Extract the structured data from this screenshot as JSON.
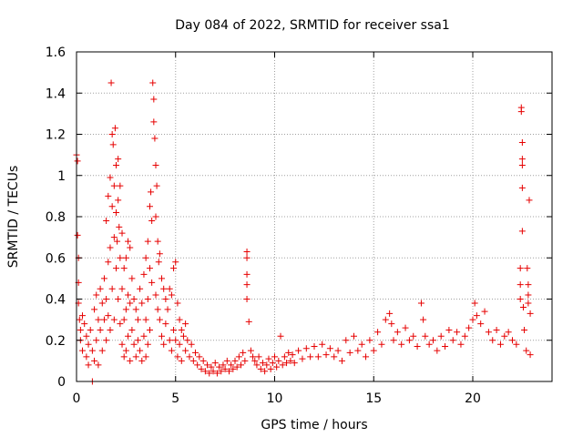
{
  "chart_data": {
    "type": "scatter",
    "title": "Day 084 of 2022, SRMTID for receiver ssa1",
    "xlabel": "GPS time / hours",
    "ylabel": "SRMTID / TECUs",
    "xlim": [
      0,
      24
    ],
    "ylim": [
      0,
      1.6
    ],
    "x_ticks": [
      0,
      5,
      10,
      15,
      20
    ],
    "x_tick_labels": [
      "0",
      "5",
      "10",
      "15",
      "20"
    ],
    "y_ticks": [
      0,
      0.2,
      0.4,
      0.6,
      0.8,
      1,
      1.2,
      1.4,
      1.6
    ],
    "y_tick_labels": [
      "0",
      "0.2",
      "0.4",
      "0.6",
      "0.8",
      "1",
      "1.2",
      "1.4",
      "1.6"
    ],
    "grid": true,
    "marker": "plus",
    "series": [
      {
        "name": "SRMTID",
        "color": "#e60000",
        "points": [
          [
            0.0,
            1.1
          ],
          [
            0.05,
            1.07
          ],
          [
            0.05,
            0.71
          ],
          [
            0.1,
            0.6
          ],
          [
            0.1,
            0.48
          ],
          [
            0.1,
            0.38
          ],
          [
            0.15,
            0.3
          ],
          [
            0.2,
            0.25
          ],
          [
            0.2,
            0.2
          ],
          [
            0.3,
            0.32
          ],
          [
            0.3,
            0.15
          ],
          [
            0.4,
            0.28
          ],
          [
            0.5,
            0.22
          ],
          [
            0.5,
            0.12
          ],
          [
            0.6,
            0.18
          ],
          [
            0.6,
            0.08
          ],
          [
            0.7,
            0.25
          ],
          [
            0.8,
            0.15
          ],
          [
            0.8,
            0.0
          ],
          [
            0.9,
            0.35
          ],
          [
            0.9,
            0.1
          ],
          [
            1.0,
            0.42
          ],
          [
            1.0,
            0.2
          ],
          [
            1.1,
            0.3
          ],
          [
            1.1,
            0.08
          ],
          [
            1.2,
            0.45
          ],
          [
            1.2,
            0.25
          ],
          [
            1.3,
            0.38
          ],
          [
            1.3,
            0.15
          ],
          [
            1.4,
            0.5
          ],
          [
            1.4,
            0.3
          ],
          [
            1.5,
            0.78
          ],
          [
            1.5,
            0.4
          ],
          [
            1.5,
            0.2
          ],
          [
            1.6,
            0.9
          ],
          [
            1.6,
            0.58
          ],
          [
            1.6,
            0.32
          ],
          [
            1.7,
            0.99
          ],
          [
            1.7,
            0.65
          ],
          [
            1.7,
            0.25
          ],
          [
            1.75,
            1.45
          ],
          [
            1.8,
            1.2
          ],
          [
            1.8,
            0.85
          ],
          [
            1.8,
            0.45
          ],
          [
            1.85,
            1.15
          ],
          [
            1.9,
            0.95
          ],
          [
            1.9,
            0.7
          ],
          [
            1.9,
            0.3
          ],
          [
            1.95,
            1.23
          ],
          [
            2.0,
            1.05
          ],
          [
            2.0,
            0.82
          ],
          [
            2.0,
            0.55
          ],
          [
            2.05,
            0.68
          ],
          [
            2.1,
            1.08
          ],
          [
            2.1,
            0.88
          ],
          [
            2.1,
            0.4
          ],
          [
            2.15,
            0.75
          ],
          [
            2.2,
            0.95
          ],
          [
            2.2,
            0.6
          ],
          [
            2.2,
            0.28
          ],
          [
            2.3,
            0.72
          ],
          [
            2.3,
            0.45
          ],
          [
            2.3,
            0.18
          ],
          [
            2.4,
            0.55
          ],
          [
            2.4,
            0.3
          ],
          [
            2.4,
            0.12
          ],
          [
            2.5,
            0.6
          ],
          [
            2.5,
            0.35
          ],
          [
            2.5,
            0.15
          ],
          [
            2.6,
            0.68
          ],
          [
            2.6,
            0.42
          ],
          [
            2.6,
            0.22
          ],
          [
            2.7,
            0.65
          ],
          [
            2.7,
            0.38
          ],
          [
            2.7,
            0.1
          ],
          [
            2.8,
            0.5
          ],
          [
            2.8,
            0.25
          ],
          [
            2.9,
            0.4
          ],
          [
            2.9,
            0.18
          ],
          [
            3.0,
            0.35
          ],
          [
            3.0,
            0.12
          ],
          [
            3.1,
            0.3
          ],
          [
            3.1,
            0.2
          ],
          [
            3.2,
            0.45
          ],
          [
            3.2,
            0.15
          ],
          [
            3.3,
            0.38
          ],
          [
            3.3,
            0.1
          ],
          [
            3.4,
            0.52
          ],
          [
            3.4,
            0.22
          ],
          [
            3.5,
            0.6
          ],
          [
            3.5,
            0.3
          ],
          [
            3.5,
            0.12
          ],
          [
            3.6,
            0.68
          ],
          [
            3.6,
            0.4
          ],
          [
            3.6,
            0.18
          ],
          [
            3.7,
            0.85
          ],
          [
            3.7,
            0.55
          ],
          [
            3.7,
            0.25
          ],
          [
            3.75,
            0.92
          ],
          [
            3.8,
            0.78
          ],
          [
            3.8,
            0.48
          ],
          [
            3.85,
            1.45
          ],
          [
            3.9,
            1.37
          ],
          [
            3.9,
            1.26
          ],
          [
            3.95,
            1.18
          ],
          [
            4.0,
            1.05
          ],
          [
            4.0,
            0.8
          ],
          [
            4.0,
            0.42
          ],
          [
            4.05,
            0.95
          ],
          [
            4.1,
            0.68
          ],
          [
            4.1,
            0.35
          ],
          [
            4.15,
            0.58
          ],
          [
            4.2,
            0.62
          ],
          [
            4.2,
            0.3
          ],
          [
            4.3,
            0.5
          ],
          [
            4.3,
            0.22
          ],
          [
            4.4,
            0.45
          ],
          [
            4.4,
            0.18
          ],
          [
            4.5,
            0.4
          ],
          [
            4.5,
            0.28
          ],
          [
            4.6,
            0.35
          ],
          [
            4.7,
            0.45
          ],
          [
            4.7,
            0.2
          ],
          [
            4.8,
            0.42
          ],
          [
            4.8,
            0.15
          ],
          [
            4.9,
            0.55
          ],
          [
            4.9,
            0.25
          ],
          [
            5.0,
            0.58
          ],
          [
            5.0,
            0.2
          ],
          [
            5.1,
            0.38
          ],
          [
            5.1,
            0.12
          ],
          [
            5.2,
            0.3
          ],
          [
            5.2,
            0.18
          ],
          [
            5.3,
            0.25
          ],
          [
            5.3,
            0.1
          ],
          [
            5.4,
            0.22
          ],
          [
            5.5,
            0.15
          ],
          [
            5.5,
            0.28
          ],
          [
            5.6,
            0.2
          ],
          [
            5.7,
            0.12
          ],
          [
            5.8,
            0.18
          ],
          [
            5.9,
            0.1
          ],
          [
            6.0,
            0.14
          ],
          [
            6.1,
            0.08
          ],
          [
            6.2,
            0.12
          ],
          [
            6.3,
            0.06
          ],
          [
            6.4,
            0.1
          ],
          [
            6.5,
            0.05
          ],
          [
            6.6,
            0.08
          ],
          [
            6.7,
            0.04
          ],
          [
            6.8,
            0.07
          ],
          [
            6.9,
            0.05
          ],
          [
            7.0,
            0.09
          ],
          [
            7.1,
            0.04
          ],
          [
            7.2,
            0.07
          ],
          [
            7.3,
            0.05
          ],
          [
            7.4,
            0.08
          ],
          [
            7.5,
            0.06
          ],
          [
            7.6,
            0.1
          ],
          [
            7.7,
            0.05
          ],
          [
            7.8,
            0.08
          ],
          [
            7.9,
            0.06
          ],
          [
            8.0,
            0.1
          ],
          [
            8.1,
            0.07
          ],
          [
            8.2,
            0.12
          ],
          [
            8.3,
            0.08
          ],
          [
            8.4,
            0.14
          ],
          [
            8.5,
            0.1
          ],
          [
            8.6,
            0.63
          ],
          [
            8.6,
            0.6
          ],
          [
            8.6,
            0.52
          ],
          [
            8.6,
            0.47
          ],
          [
            8.6,
            0.4
          ],
          [
            8.7,
            0.29
          ],
          [
            8.8,
            0.15
          ],
          [
            8.9,
            0.12
          ],
          [
            9.0,
            0.1
          ],
          [
            9.1,
            0.08
          ],
          [
            9.2,
            0.12
          ],
          [
            9.3,
            0.06
          ],
          [
            9.4,
            0.09
          ],
          [
            9.5,
            0.05
          ],
          [
            9.6,
            0.08
          ],
          [
            9.7,
            0.11
          ],
          [
            9.8,
            0.06
          ],
          [
            9.9,
            0.09
          ],
          [
            10.0,
            0.12
          ],
          [
            10.1,
            0.07
          ],
          [
            10.2,
            0.1
          ],
          [
            10.3,
            0.22
          ],
          [
            10.4,
            0.08
          ],
          [
            10.5,
            0.12
          ],
          [
            10.6,
            0.09
          ],
          [
            10.7,
            0.14
          ],
          [
            10.8,
            0.1
          ],
          [
            10.9,
            0.13
          ],
          [
            11.0,
            0.09
          ],
          [
            11.2,
            0.15
          ],
          [
            11.4,
            0.11
          ],
          [
            11.6,
            0.16
          ],
          [
            11.8,
            0.12
          ],
          [
            12.0,
            0.17
          ],
          [
            12.2,
            0.12
          ],
          [
            12.4,
            0.18
          ],
          [
            12.6,
            0.13
          ],
          [
            12.8,
            0.16
          ],
          [
            13.0,
            0.12
          ],
          [
            13.2,
            0.15
          ],
          [
            13.4,
            0.1
          ],
          [
            13.6,
            0.2
          ],
          [
            13.8,
            0.14
          ],
          [
            14.0,
            0.22
          ],
          [
            14.2,
            0.15
          ],
          [
            14.4,
            0.18
          ],
          [
            14.6,
            0.12
          ],
          [
            14.8,
            0.2
          ],
          [
            15.0,
            0.15
          ],
          [
            15.2,
            0.24
          ],
          [
            15.4,
            0.18
          ],
          [
            15.6,
            0.3
          ],
          [
            15.8,
            0.33
          ],
          [
            15.9,
            0.28
          ],
          [
            16.0,
            0.2
          ],
          [
            16.2,
            0.24
          ],
          [
            16.4,
            0.18
          ],
          [
            16.6,
            0.26
          ],
          [
            16.8,
            0.2
          ],
          [
            17.0,
            0.22
          ],
          [
            17.2,
            0.17
          ],
          [
            17.4,
            0.38
          ],
          [
            17.5,
            0.3
          ],
          [
            17.6,
            0.22
          ],
          [
            17.8,
            0.18
          ],
          [
            18.0,
            0.2
          ],
          [
            18.2,
            0.15
          ],
          [
            18.4,
            0.22
          ],
          [
            18.6,
            0.17
          ],
          [
            18.8,
            0.25
          ],
          [
            19.0,
            0.2
          ],
          [
            19.2,
            0.24
          ],
          [
            19.4,
            0.18
          ],
          [
            19.6,
            0.22
          ],
          [
            19.8,
            0.26
          ],
          [
            20.0,
            0.3
          ],
          [
            20.1,
            0.38
          ],
          [
            20.2,
            0.32
          ],
          [
            20.4,
            0.28
          ],
          [
            20.6,
            0.34
          ],
          [
            20.8,
            0.24
          ],
          [
            21.0,
            0.2
          ],
          [
            21.2,
            0.25
          ],
          [
            21.4,
            0.18
          ],
          [
            21.6,
            0.22
          ],
          [
            21.8,
            0.24
          ],
          [
            22.0,
            0.2
          ],
          [
            22.2,
            0.18
          ],
          [
            22.4,
            0.55
          ],
          [
            22.4,
            0.47
          ],
          [
            22.4,
            0.4
          ],
          [
            22.45,
            1.33
          ],
          [
            22.45,
            1.31
          ],
          [
            22.5,
            1.16
          ],
          [
            22.5,
            1.08
          ],
          [
            22.5,
            1.05
          ],
          [
            22.5,
            0.94
          ],
          [
            22.5,
            0.73
          ],
          [
            22.55,
            0.36
          ],
          [
            22.6,
            0.25
          ],
          [
            22.7,
            0.15
          ],
          [
            22.75,
            0.55
          ],
          [
            22.8,
            0.47
          ],
          [
            22.8,
            0.42
          ],
          [
            22.8,
            0.38
          ],
          [
            22.85,
            0.88
          ],
          [
            22.9,
            0.33
          ],
          [
            22.9,
            0.13
          ]
        ]
      }
    ]
  }
}
